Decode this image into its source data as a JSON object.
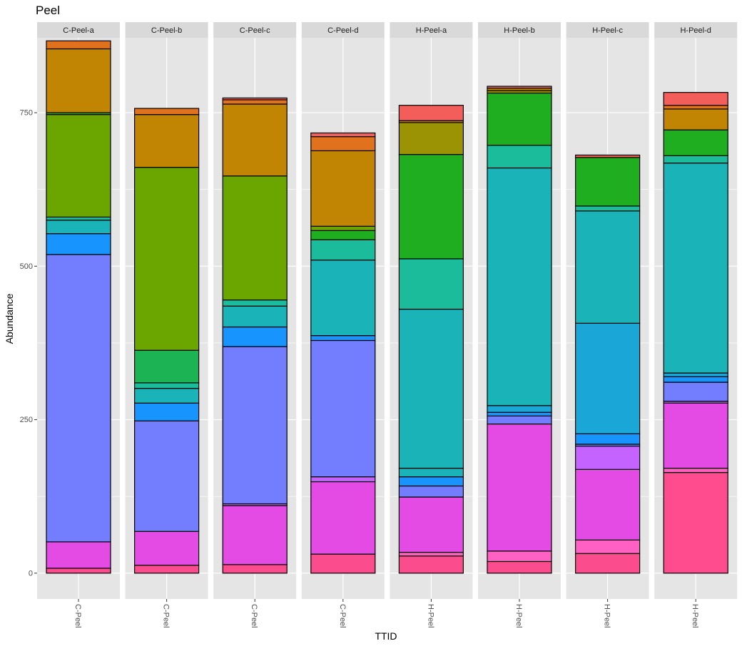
{
  "chart_data": {
    "type": "bar",
    "stacked": true,
    "faceted": true,
    "title": "Peel",
    "xlabel": "TTID",
    "ylabel": "Abundance",
    "ylim": [
      -42,
      872
    ],
    "yticks": [
      0,
      250,
      500,
      750
    ],
    "grid": true,
    "colors": {
      "panel_bg": "#e5e5e5",
      "strip_bg": "#d9d9d9",
      "grid": "#ffffff",
      "outline": "#000000"
    },
    "panels": [
      {
        "strip": "C-Peel-a",
        "category": "C-Peel",
        "segments": [
          {
            "value": 8,
            "color": "#fb4d8d"
          },
          {
            "value": 43,
            "color": "#e44be5"
          },
          {
            "value": 468,
            "color": "#737efe"
          },
          {
            "value": 34,
            "color": "#1894ff"
          },
          {
            "value": 22,
            "color": "#1ab3b8"
          },
          {
            "value": 5,
            "color": "#1abc9c"
          },
          {
            "value": 167,
            "color": "#6aa500"
          },
          {
            "value": 3,
            "color": "#35a819"
          },
          {
            "value": 104,
            "color": "#c28403"
          },
          {
            "value": 13,
            "color": "#e0711d"
          }
        ]
      },
      {
        "strip": "C-Peel-b",
        "category": "C-Peel",
        "segments": [
          {
            "value": 13,
            "color": "#fb4d8d"
          },
          {
            "value": 55,
            "color": "#e44be5"
          },
          {
            "value": 180,
            "color": "#737efe"
          },
          {
            "value": 29,
            "color": "#1894ff"
          },
          {
            "value": 24,
            "color": "#1ab3b8"
          },
          {
            "value": 9,
            "color": "#1abc9c"
          },
          {
            "value": 53,
            "color": "#1cb355"
          },
          {
            "value": 298,
            "color": "#6aa500"
          },
          {
            "value": 86,
            "color": "#c28403"
          },
          {
            "value": 10,
            "color": "#e0711d"
          }
        ]
      },
      {
        "strip": "C-Peel-c",
        "category": "C-Peel",
        "segments": [
          {
            "value": 14,
            "color": "#fb4d8d"
          },
          {
            "value": 96,
            "color": "#e44be5"
          },
          {
            "value": 3,
            "color": "#c463ff"
          },
          {
            "value": 256,
            "color": "#737efe"
          },
          {
            "value": 32,
            "color": "#1894ff"
          },
          {
            "value": 34,
            "color": "#1ab3b8"
          },
          {
            "value": 10,
            "color": "#1abc9c"
          },
          {
            "value": 202,
            "color": "#6aa500"
          },
          {
            "value": 117,
            "color": "#c28403"
          },
          {
            "value": 7,
            "color": "#e0711d"
          },
          {
            "value": 3,
            "color": "#f35e5a"
          }
        ]
      },
      {
        "strip": "C-Peel-d",
        "category": "C-Peel",
        "segments": [
          {
            "value": 31,
            "color": "#fb4d8d"
          },
          {
            "value": 118,
            "color": "#e44be5"
          },
          {
            "value": 8,
            "color": "#c463ff"
          },
          {
            "value": 222,
            "color": "#737efe"
          },
          {
            "value": 8,
            "color": "#1894ff"
          },
          {
            "value": 123,
            "color": "#1ab3b8"
          },
          {
            "value": 33,
            "color": "#1abc9c"
          },
          {
            "value": 15,
            "color": "#1fae1f"
          },
          {
            "value": 7,
            "color": "#6aa500"
          },
          {
            "value": 123,
            "color": "#c28403"
          },
          {
            "value": 23,
            "color": "#e0711d"
          },
          {
            "value": 6,
            "color": "#f35e5a"
          }
        ]
      },
      {
        "strip": "H-Peel-a",
        "category": "H-Peel",
        "segments": [
          {
            "value": 28,
            "color": "#fb4d8d"
          },
          {
            "value": 6,
            "color": "#ff61c3"
          },
          {
            "value": 90,
            "color": "#e44be5"
          },
          {
            "value": 18,
            "color": "#737efe"
          },
          {
            "value": 15,
            "color": "#1894ff"
          },
          {
            "value": 14,
            "color": "#1ab3b8"
          },
          {
            "value": 259,
            "color": "#1ab3b8"
          },
          {
            "value": 82,
            "color": "#1abc9c"
          },
          {
            "value": 170,
            "color": "#1fae1f"
          },
          {
            "value": 52,
            "color": "#9b9303"
          },
          {
            "value": 3,
            "color": "#c28403"
          },
          {
            "value": 25,
            "color": "#f35e5a"
          }
        ]
      },
      {
        "strip": "H-Peel-b",
        "category": "H-Peel",
        "segments": [
          {
            "value": 19,
            "color": "#fb4d8d"
          },
          {
            "value": 17,
            "color": "#ff61c3"
          },
          {
            "value": 207,
            "color": "#e44be5"
          },
          {
            "value": 13,
            "color": "#737efe"
          },
          {
            "value": 6,
            "color": "#1894ff"
          },
          {
            "value": 11,
            "color": "#1aa6d6"
          },
          {
            "value": 387,
            "color": "#1ab3b8"
          },
          {
            "value": 37,
            "color": "#1abc9c"
          },
          {
            "value": 85,
            "color": "#1fae1f"
          },
          {
            "value": 4,
            "color": "#9b9303"
          },
          {
            "value": 4,
            "color": "#c28403"
          },
          {
            "value": 3,
            "color": "#f35e5a"
          }
        ]
      },
      {
        "strip": "H-Peel-c",
        "category": "H-Peel",
        "segments": [
          {
            "value": 32,
            "color": "#fb4d8d"
          },
          {
            "value": 22,
            "color": "#ff61c3"
          },
          {
            "value": 115,
            "color": "#e44be5"
          },
          {
            "value": 38,
            "color": "#c463ff"
          },
          {
            "value": 3,
            "color": "#737efe"
          },
          {
            "value": 17,
            "color": "#1894ff"
          },
          {
            "value": 180,
            "color": "#1aa6d6"
          },
          {
            "value": 183,
            "color": "#1ab3b8"
          },
          {
            "value": 8,
            "color": "#1abc9c"
          },
          {
            "value": 79,
            "color": "#1fae1f"
          },
          {
            "value": 4,
            "color": "#f35e5a"
          }
        ]
      },
      {
        "strip": "H-Peel-d",
        "category": "H-Peel",
        "segments": [
          {
            "value": 164,
            "color": "#ff4c8f"
          },
          {
            "value": 7,
            "color": "#ff61c3"
          },
          {
            "value": 106,
            "color": "#e44be5"
          },
          {
            "value": 3,
            "color": "#c463ff"
          },
          {
            "value": 31,
            "color": "#737efe"
          },
          {
            "value": 9,
            "color": "#1894ff"
          },
          {
            "value": 6,
            "color": "#1aa6d6"
          },
          {
            "value": 342,
            "color": "#1ab3b8"
          },
          {
            "value": 12,
            "color": "#1abc9c"
          },
          {
            "value": 42,
            "color": "#1fae1f"
          },
          {
            "value": 34,
            "color": "#c28403"
          },
          {
            "value": 6,
            "color": "#e0711d"
          },
          {
            "value": 21,
            "color": "#f35e5a"
          }
        ]
      }
    ]
  }
}
